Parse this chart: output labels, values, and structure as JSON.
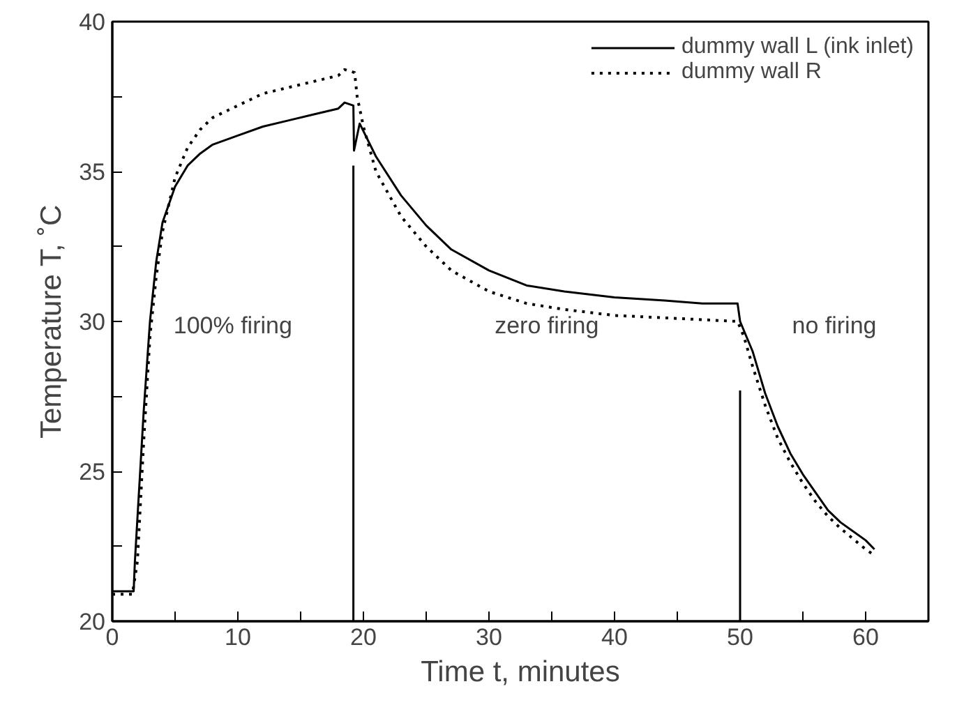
{
  "chart_data": {
    "type": "line",
    "xlabel": "Time t, minutes",
    "ylabel": "Temperature T, ˚C",
    "xlim": [
      0,
      65
    ],
    "ylim": [
      20,
      40
    ],
    "xticks": [
      0,
      {
        "value": 5,
        "label": null
      },
      10,
      {
        "value": 15,
        "label": null
      },
      20,
      {
        "value": 25,
        "label": null
      },
      30,
      {
        "value": 35,
        "label": null
      },
      40,
      {
        "value": 45,
        "label": null
      },
      50,
      {
        "value": 55,
        "label": null
      },
      60
    ],
    "yticks": [
      20,
      {
        "value": 22.5,
        "label": null
      },
      25,
      {
        "value": 27.5,
        "label": null
      },
      30,
      {
        "value": 32.5,
        "label": null
      },
      35,
      {
        "value": 37.5,
        "label": null
      },
      40
    ],
    "legend": "top right",
    "grid": false,
    "marker": "none",
    "series": [
      {
        "name": "dummy wall L (ink inlet)",
        "color": "#000000",
        "line_style": "solid",
        "x": [
          0,
          1.7,
          1.8,
          2.5,
          3,
          3.5,
          4,
          5,
          6,
          7,
          8,
          10,
          12,
          14,
          16,
          18,
          18.5,
          19.2,
          19.25,
          19.7,
          21,
          23,
          25,
          27,
          30,
          33,
          36,
          40,
          44,
          47,
          49.8,
          50,
          51,
          52,
          53,
          54,
          55,
          56,
          57,
          58,
          60,
          60.7
        ],
        "values": [
          21.0,
          21.0,
          22,
          27,
          30,
          32,
          33.3,
          34.5,
          35.2,
          35.6,
          35.9,
          36.2,
          36.5,
          36.7,
          36.9,
          37.1,
          37.3,
          37.2,
          35.7,
          36.6,
          35.5,
          34.2,
          33.2,
          32.4,
          31.7,
          31.2,
          31.0,
          30.8,
          30.7,
          30.6,
          30.6,
          30.0,
          29.0,
          27.6,
          26.5,
          25.6,
          24.9,
          24.3,
          23.7,
          23.3,
          22.7,
          22.4
        ]
      },
      {
        "name": "dummy wall R",
        "color": "#000000",
        "line_style": "dotted",
        "x": [
          0,
          1.6,
          2,
          2.5,
          3,
          3.5,
          4,
          5,
          6,
          7,
          8,
          10,
          12,
          14,
          16,
          18,
          18.5,
          19.3,
          19.5,
          20,
          21,
          23,
          25,
          27,
          30,
          33,
          36,
          40,
          45,
          49.8,
          50.3,
          51,
          52,
          53,
          54,
          55,
          56,
          57,
          58,
          60,
          60.7
        ],
        "values": [
          20.9,
          20.9,
          22,
          26,
          29.5,
          31.5,
          33,
          34.8,
          35.8,
          36.4,
          36.8,
          37.2,
          37.6,
          37.8,
          38.0,
          38.2,
          38.4,
          38.3,
          37.5,
          36.5,
          35.0,
          33.5,
          32.5,
          31.7,
          31.0,
          30.6,
          30.4,
          30.2,
          30.1,
          30.0,
          29.5,
          28.5,
          27.2,
          26.1,
          25.3,
          24.6,
          24.0,
          23.5,
          23.1,
          22.4,
          22.2
        ]
      },
      {
        "color": "#000000",
        "line_style": "solid",
        "x": [
          19.2,
          19.2
        ],
        "values": [
          20,
          35.2
        ]
      },
      {
        "color": "#000000",
        "line_style": "solid",
        "x": [
          50,
          50
        ],
        "values": [
          20,
          27.7
        ]
      }
    ],
    "annotations": [
      "100% firing",
      "zero firing",
      "no firing"
    ]
  }
}
